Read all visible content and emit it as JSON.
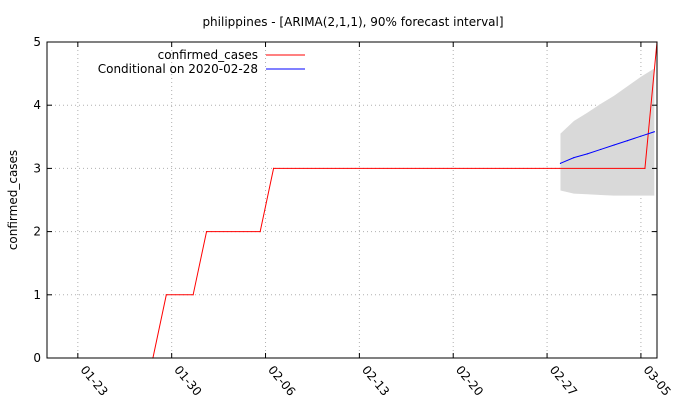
{
  "chart_data": {
    "type": "line",
    "title": "philippines -  [ARIMA(2,1,1), 90% forecast interval]",
    "xlabel": "",
    "ylabel": "confirmed_cases",
    "ylim": [
      0,
      5
    ],
    "y_ticks": [
      "0",
      "1",
      "2",
      "3",
      "4",
      "5"
    ],
    "x_tick_labels": [
      "01-23",
      "01-30",
      "02-06",
      "02-13",
      "02-20",
      "02-27",
      "03-05"
    ],
    "x_tick_days": [
      0,
      7,
      14,
      21,
      28,
      35,
      42
    ],
    "xlim_days": [
      -2.3,
      43.2
    ],
    "x_origin_label": "01-23",
    "grid": true,
    "legend_position": "top-left",
    "colors": {
      "actual": "#ff0000",
      "forecast": "#0000ff",
      "interval": "#d9d9d9"
    },
    "series": [
      {
        "name": "confirmed_cases",
        "x": [
          5.6,
          6.6,
          8.6,
          9.6,
          13.6,
          14.6,
          42.3,
          43.2
        ],
        "y": [
          0,
          1,
          1,
          2,
          2,
          3,
          3,
          5
        ]
      },
      {
        "name": "Conditional on 2020-02-28",
        "x": [
          36.0,
          37.0,
          38.0,
          39.0,
          40.0,
          41.0,
          42.0,
          43.0
        ],
        "y": [
          3.08,
          3.17,
          3.23,
          3.3,
          3.37,
          3.44,
          3.51,
          3.58
        ]
      }
    ],
    "interval": {
      "x": [
        36.0,
        37.0,
        38.0,
        39.0,
        40.0,
        41.0,
        42.0,
        43.0
      ],
      "lower": [
        2.65,
        2.6,
        2.59,
        2.58,
        2.57,
        2.57,
        2.57,
        2.57
      ],
      "upper": [
        3.55,
        3.75,
        3.88,
        4.02,
        4.15,
        4.3,
        4.45,
        4.58
      ]
    }
  }
}
